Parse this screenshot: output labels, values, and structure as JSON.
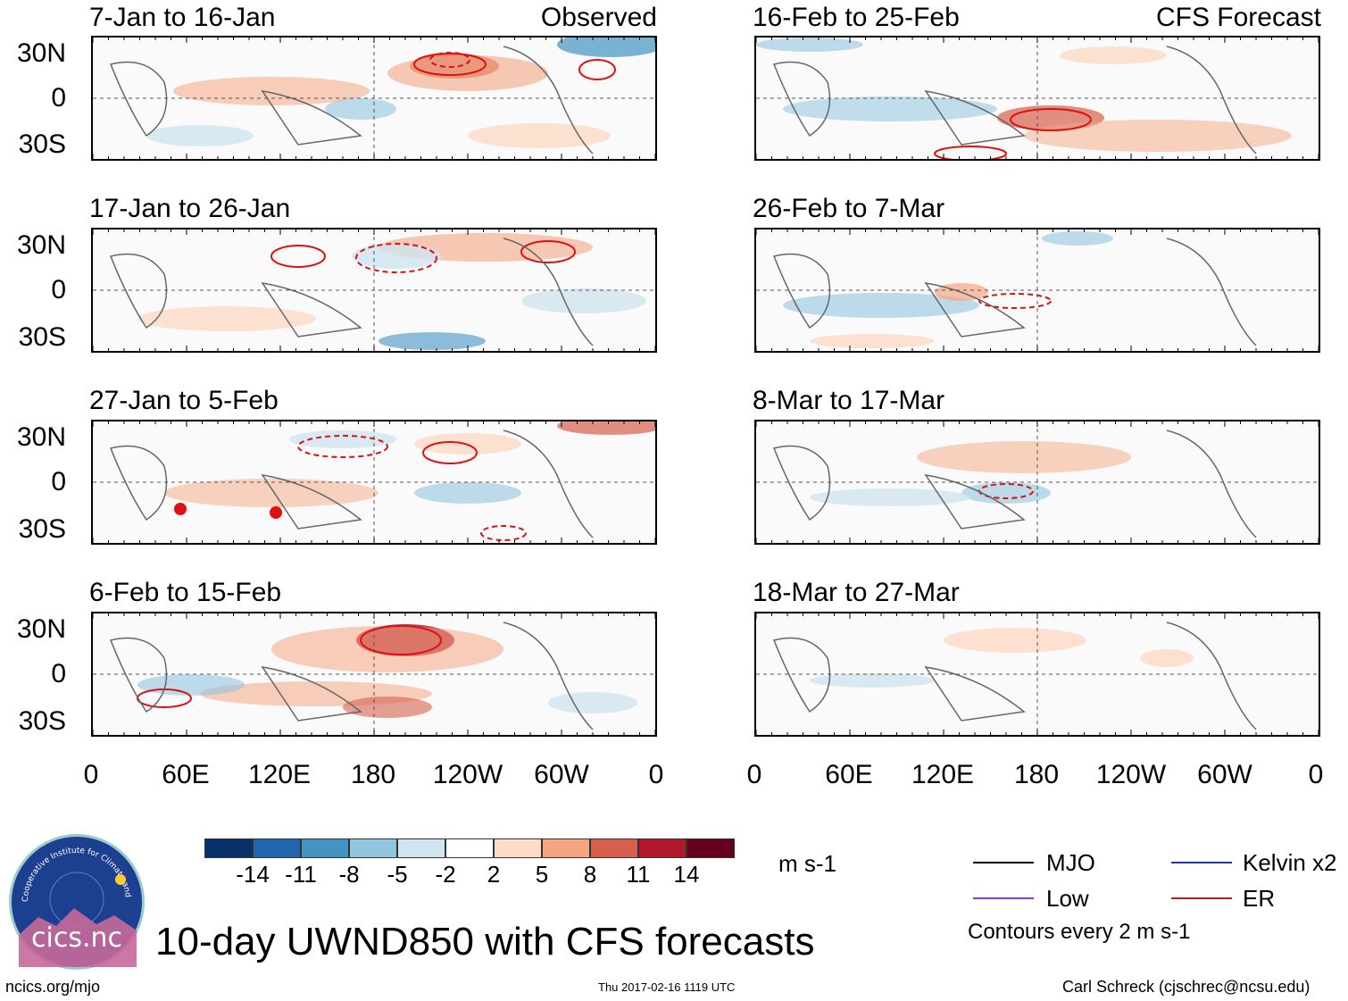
{
  "observed_label": "Observed",
  "forecast_label": "CFS Forecast",
  "observed_panels": [
    {
      "title": "7-Jan to 16-Jan"
    },
    {
      "title": "17-Jan to 26-Jan"
    },
    {
      "title": "27-Jan to 5-Feb"
    },
    {
      "title": "6-Feb to 15-Feb"
    }
  ],
  "forecast_panels": [
    {
      "title": "16-Feb to 25-Feb"
    },
    {
      "title": "26-Feb to 7-Mar"
    },
    {
      "title": "8-Mar to 17-Mar"
    },
    {
      "title": "18-Mar to 27-Mar"
    }
  ],
  "lat_labels": [
    "30N",
    "0",
    "30S"
  ],
  "lon_labels": [
    "0",
    "60E",
    "120E",
    "180",
    "120W",
    "60W",
    "0"
  ],
  "colorbar": {
    "colors": [
      "#08306b",
      "#2166ac",
      "#4393c3",
      "#92c5de",
      "#d1e5f0",
      "#ffffff",
      "#fddbc7",
      "#f4a582",
      "#d6604d",
      "#b2182b",
      "#67001f"
    ],
    "labels": [
      "-14",
      "-11",
      "-8",
      "-5",
      "-2",
      "2",
      "5",
      "8",
      "11",
      "14"
    ],
    "units": "m s-1"
  },
  "legend": {
    "items": [
      {
        "label": "MJO",
        "color": "#000000"
      },
      {
        "label": "Kelvin x2",
        "color": "#2233cc"
      },
      {
        "label": "Low",
        "color": "#9933ee"
      },
      {
        "label": "ER",
        "color": "#dd1111"
      }
    ],
    "contour_note": "Contours every 2 m s-1"
  },
  "logo_text": "cics.nc",
  "logo_ring_text": "Cooperative Institute for Climate and Satellites",
  "main_title": "10-day UWND850 with CFS forecasts",
  "footer": {
    "left": "ncics.org/mjo",
    "center": "Thu 2017-02-16 1119 UTC",
    "right": "Carl Schreck (cjschrec@ncsu.edu)"
  }
}
